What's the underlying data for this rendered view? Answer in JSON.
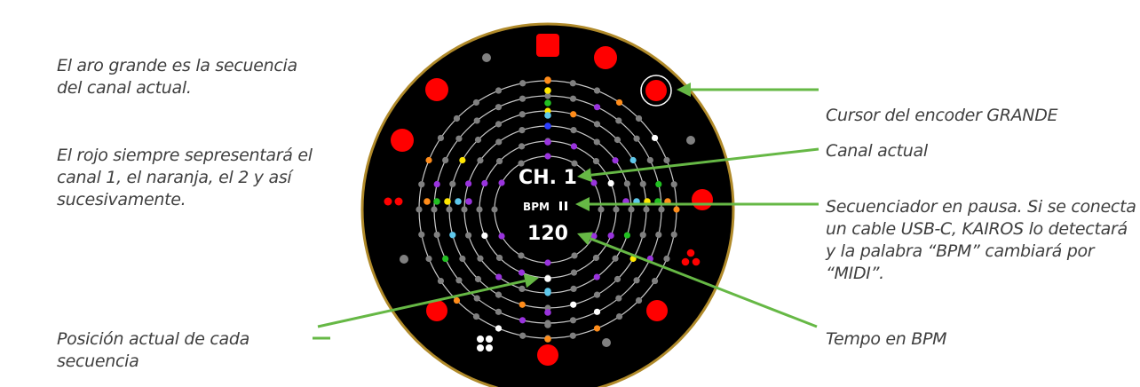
{
  "notes": {
    "left_1": "El aro grande es la secuencia del canal actual.",
    "left_2": "El rojo siempre sepresentará el canal 1, el naranja, el 2 y así sucesivamente.",
    "left_3": "Posición actual de cada secuencia",
    "right_1": "Cursor del encoder GRANDE",
    "right_2": "Canal actual",
    "right_3": "Secuenciador en pausa. Si se conecta un cable USB-C, KAIROS lo detectará y la palabra “BPM” cambiará por “MIDI”.",
    "right_4": "Tempo en BPM"
  },
  "display": {
    "channel": "CH. 1",
    "mode": "BPM",
    "tempo": "120",
    "pause_icon": "pause-icon",
    "square_icon": "stop-square-icon",
    "quad_dots_icon": "four-dots-icon",
    "triple_dots_icon": "three-dots-icon",
    "double_dots_icon": "two-dots-icon"
  },
  "colors": {
    "screen": "#000000",
    "red": "#ff0000",
    "orange": "#ff8c1a",
    "yellow": "#ffe600",
    "green": "#22c022",
    "cyan": "#5ec8ec",
    "blue": "#2a3cff",
    "purple": "#9933dd",
    "white": "#ffffff",
    "grey": "#808080",
    "arrow": "#66b845"
  }
}
